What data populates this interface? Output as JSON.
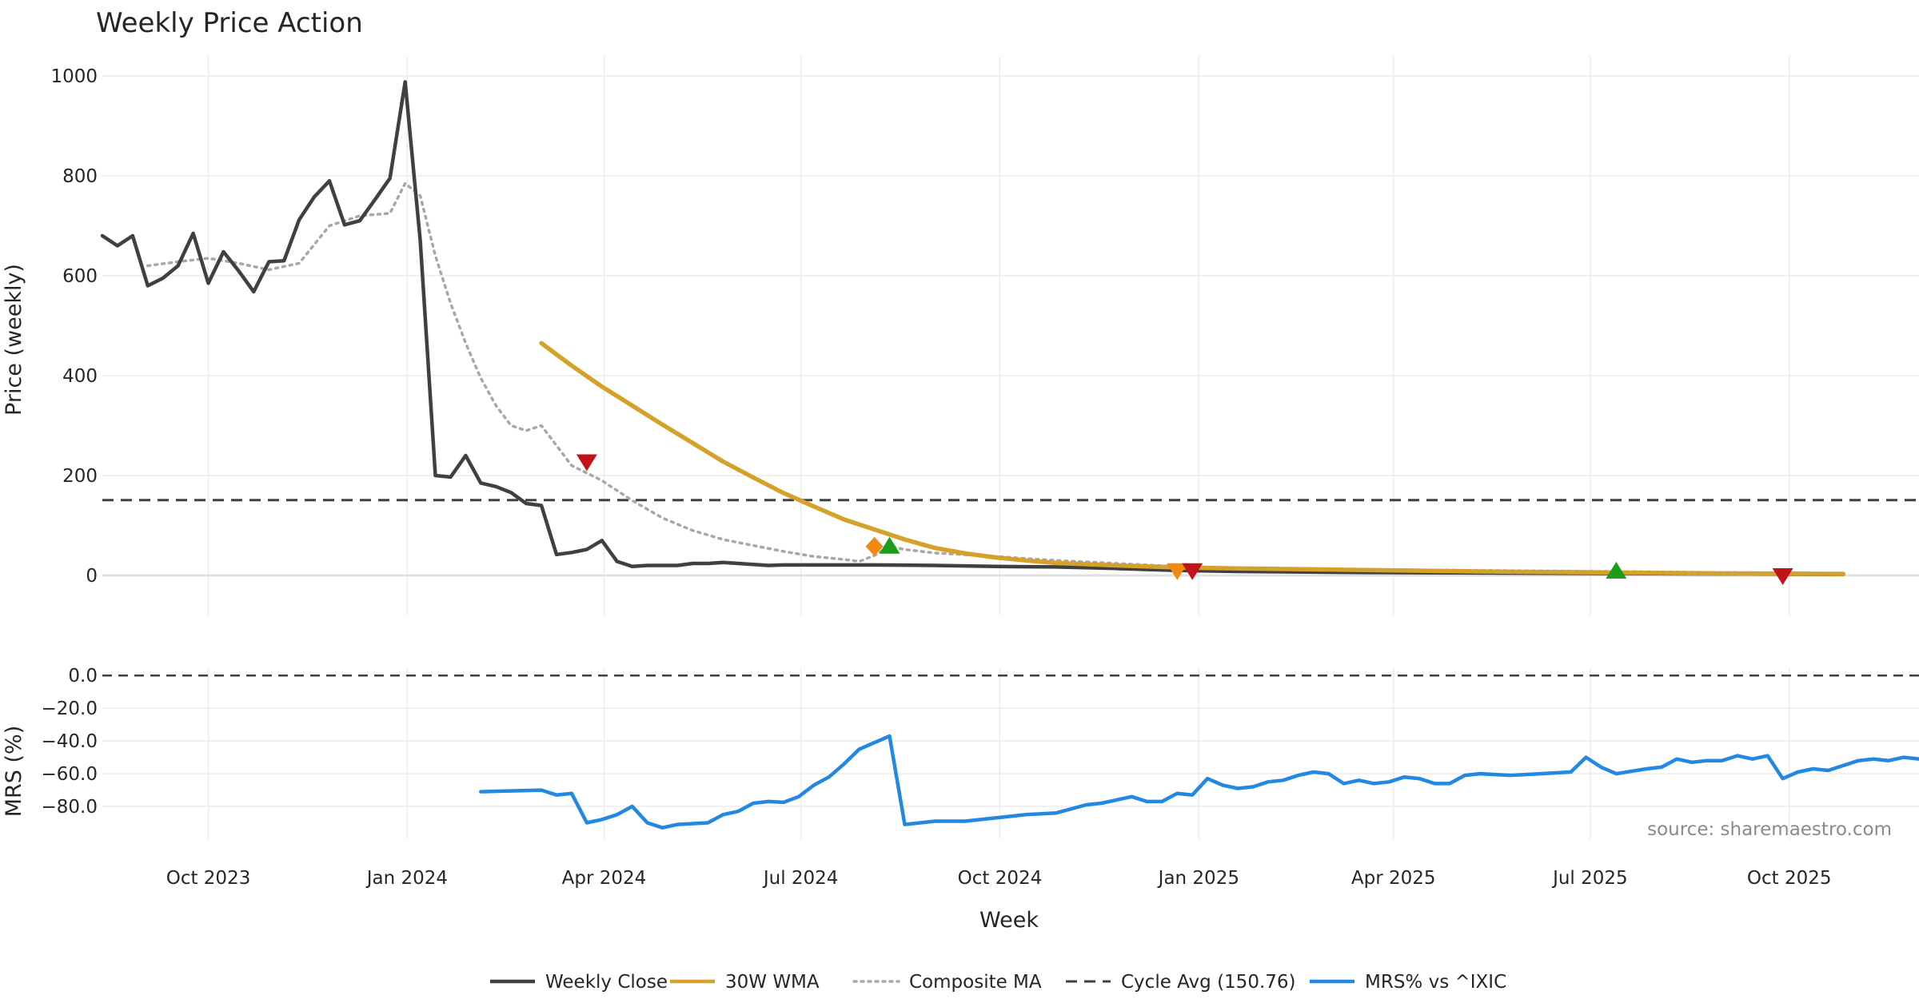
{
  "chart_data": {
    "type": "line",
    "title": "Weekly Price Action",
    "source_note": "source: sharemaestro.com",
    "xlabel": "Week",
    "x_ticks": [
      "Oct 2023",
      "Jan 2024",
      "Apr 2024",
      "Jul 2024",
      "Oct 2024",
      "Jan 2025",
      "Apr 2025",
      "Jul 2025",
      "Oct 2025"
    ],
    "price_panel": {
      "ylabel": "Price (weekly)",
      "ylim": [
        -80,
        1040
      ],
      "y_ticks": [
        0,
        200,
        400,
        600,
        800,
        1000
      ],
      "series": {
        "close": {
          "name": "Weekly Close",
          "color": "#404040",
          "points": [
            [
              "2023-08-13",
              680
            ],
            [
              "2023-08-20",
              660
            ],
            [
              "2023-08-27",
              680
            ],
            [
              "2023-09-03",
              580
            ],
            [
              "2023-09-10",
              595
            ],
            [
              "2023-09-17",
              620
            ],
            [
              "2023-09-24",
              685
            ],
            [
              "2023-10-01",
              585
            ],
            [
              "2023-10-08",
              648
            ],
            [
              "2023-10-15",
              610
            ],
            [
              "2023-10-22",
              568
            ],
            [
              "2023-10-29",
              628
            ],
            [
              "2023-11-05",
              630
            ],
            [
              "2023-11-12",
              712
            ],
            [
              "2023-11-19",
              758
            ],
            [
              "2023-11-26",
              790
            ],
            [
              "2023-12-03",
              702
            ],
            [
              "2023-12-10",
              710
            ],
            [
              "2023-12-17",
              752
            ],
            [
              "2023-12-24",
              795
            ],
            [
              "2023-12-31",
              988
            ],
            [
              "2024-01-07",
              670
            ],
            [
              "2024-01-14",
              200
            ],
            [
              "2024-01-21",
              197
            ],
            [
              "2024-01-28",
              240
            ],
            [
              "2024-02-04",
              185
            ],
            [
              "2024-02-11",
              178
            ],
            [
              "2024-02-18",
              166
            ],
            [
              "2024-02-25",
              144
            ],
            [
              "2024-03-03",
              140
            ],
            [
              "2024-03-10",
              42
            ],
            [
              "2024-03-17",
              46
            ],
            [
              "2024-03-24",
              52
            ],
            [
              "2024-03-31",
              70
            ],
            [
              "2024-04-07",
              28
            ],
            [
              "2024-04-14",
              18
            ],
            [
              "2024-04-21",
              20
            ],
            [
              "2024-04-28",
              20
            ],
            [
              "2024-05-05",
              20
            ],
            [
              "2024-05-12",
              24
            ],
            [
              "2024-05-19",
              24
            ],
            [
              "2024-05-26",
              26
            ],
            [
              "2024-06-02",
              24
            ],
            [
              "2024-06-09",
              22
            ],
            [
              "2024-06-16",
              20
            ],
            [
              "2024-06-23",
              21
            ],
            [
              "2024-07-07",
              21
            ],
            [
              "2024-08-04",
              21
            ],
            [
              "2024-09-01",
              20
            ],
            [
              "2024-09-29",
              18
            ],
            [
              "2024-10-27",
              17
            ],
            [
              "2024-11-24",
              14
            ],
            [
              "2024-12-22",
              10
            ],
            [
              "2025-01-19",
              8
            ],
            [
              "2025-03-16",
              6
            ],
            [
              "2025-05-11",
              5
            ],
            [
              "2025-07-06",
              4
            ],
            [
              "2025-08-31",
              3
            ],
            [
              "2025-10-26",
              2
            ]
          ]
        },
        "wma": {
          "name": "30W WMA",
          "color": "#d4a22b",
          "points": [
            [
              "2024-03-03",
              465
            ],
            [
              "2024-03-17",
              420
            ],
            [
              "2024-03-31",
              378
            ],
            [
              "2024-04-14",
              340
            ],
            [
              "2024-04-28",
              302
            ],
            [
              "2024-05-12",
              265
            ],
            [
              "2024-05-26",
              228
            ],
            [
              "2024-06-09",
              196
            ],
            [
              "2024-06-23",
              165
            ],
            [
              "2024-07-07",
              138
            ],
            [
              "2024-07-21",
              112
            ],
            [
              "2024-08-04",
              92
            ],
            [
              "2024-08-18",
              72
            ],
            [
              "2024-09-01",
              55
            ],
            [
              "2024-09-15",
              44
            ],
            [
              "2024-09-29",
              36
            ],
            [
              "2024-10-13",
              30
            ],
            [
              "2024-10-27",
              25
            ],
            [
              "2024-11-24",
              20
            ],
            [
              "2024-12-22",
              16
            ],
            [
              "2025-01-19",
              14
            ],
            [
              "2025-03-16",
              11
            ],
            [
              "2025-05-11",
              8
            ],
            [
              "2025-07-06",
              6
            ],
            [
              "2025-08-31",
              4
            ],
            [
              "2025-10-26",
              3
            ]
          ]
        },
        "composite": {
          "name": "Composite MA",
          "color": "#a8a8a8",
          "points": [
            [
              "2023-09-03",
              620
            ],
            [
              "2023-09-17",
              628
            ],
            [
              "2023-10-01",
              635
            ],
            [
              "2023-10-15",
              625
            ],
            [
              "2023-10-29",
              612
            ],
            [
              "2023-11-12",
              625
            ],
            [
              "2023-11-26",
              700
            ],
            [
              "2023-12-10",
              720
            ],
            [
              "2023-12-24",
              725
            ],
            [
              "2023-12-31",
              785
            ],
            [
              "2024-01-07",
              760
            ],
            [
              "2024-01-14",
              640
            ],
            [
              "2024-01-21",
              545
            ],
            [
              "2024-01-28",
              465
            ],
            [
              "2024-02-04",
              395
            ],
            [
              "2024-02-11",
              340
            ],
            [
              "2024-02-18",
              300
            ],
            [
              "2024-02-25",
              290
            ],
            [
              "2024-03-03",
              300
            ],
            [
              "2024-03-10",
              260
            ],
            [
              "2024-03-17",
              220
            ],
            [
              "2024-03-31",
              190
            ],
            [
              "2024-04-14",
              150
            ],
            [
              "2024-04-28",
              115
            ],
            [
              "2024-05-12",
              90
            ],
            [
              "2024-05-26",
              72
            ],
            [
              "2024-06-09",
              60
            ],
            [
              "2024-06-23",
              48
            ],
            [
              "2024-07-07",
              38
            ],
            [
              "2024-07-21",
              32
            ],
            [
              "2024-07-28",
              28
            ],
            [
              "2024-08-04",
              40
            ],
            [
              "2024-08-11",
              58
            ],
            [
              "2024-08-18",
              52
            ],
            [
              "2024-09-01",
              45
            ],
            [
              "2024-09-29",
              38
            ],
            [
              "2024-10-27",
              30
            ],
            [
              "2024-11-24",
              24
            ],
            [
              "2024-12-22",
              18
            ],
            [
              "2025-01-19",
              14
            ],
            [
              "2025-03-16",
              12
            ],
            [
              "2025-05-11",
              10
            ],
            [
              "2025-07-06",
              8
            ],
            [
              "2025-08-31",
              6
            ],
            [
              "2025-10-26",
              4
            ]
          ]
        },
        "cycle_avg": {
          "name": "Cycle Avg (150.76)",
          "value": 150.76,
          "color": "#404040"
        }
      },
      "markers": [
        {
          "date": "2024-03-24",
          "value": 228,
          "shape": "triangle-down",
          "color": "#c0141a"
        },
        {
          "date": "2024-08-04",
          "value": 58,
          "shape": "diamond",
          "color": "#f28a10"
        },
        {
          "date": "2024-08-11",
          "value": 58,
          "shape": "triangle-up",
          "color": "#1a9e1a"
        },
        {
          "date": "2024-12-22",
          "value": 10,
          "shape": "triangle-down",
          "color": "#f28a10"
        },
        {
          "date": "2024-12-29",
          "value": 10,
          "shape": "triangle-down",
          "color": "#c0141a"
        },
        {
          "date": "2025-07-13",
          "value": 8,
          "shape": "triangle-up",
          "color": "#1a9e1a"
        },
        {
          "date": "2025-09-28",
          "value": 0,
          "shape": "triangle-down",
          "color": "#c0141a"
        }
      ]
    },
    "mrs_panel": {
      "ylabel": "MRS (%)",
      "ylim": [
        -100,
        5
      ],
      "y_ticks": [
        "0.0",
        "−20.0",
        "−40.0",
        "−60.0",
        "−80.0"
      ],
      "y_tick_values": [
        0,
        -20,
        -40,
        -60,
        -80
      ],
      "zero_line": 0,
      "series": {
        "mrs": {
          "name": "MRS% vs ^IXIC",
          "color": "#2288e2",
          "points": [
            [
              "2024-02-04",
              -71
            ],
            [
              "2024-02-18",
              -70.5
            ],
            [
              "2024-03-03",
              -70
            ],
            [
              "2024-03-10",
              -73
            ],
            [
              "2024-03-17",
              -72
            ],
            [
              "2024-03-24",
              -90
            ],
            [
              "2024-03-31",
              -88
            ],
            [
              "2024-04-07",
              -85
            ],
            [
              "2024-04-14",
              -80
            ],
            [
              "2024-04-21",
              -90
            ],
            [
              "2024-04-28",
              -93
            ],
            [
              "2024-05-05",
              -91
            ],
            [
              "2024-05-19",
              -90
            ],
            [
              "2024-05-26",
              -85
            ],
            [
              "2024-06-02",
              -83
            ],
            [
              "2024-06-09",
              -78
            ],
            [
              "2024-06-16",
              -77
            ],
            [
              "2024-06-23",
              -77.5
            ],
            [
              "2024-06-30",
              -74
            ],
            [
              "2024-07-07",
              -67
            ],
            [
              "2024-07-14",
              -62
            ],
            [
              "2024-07-21",
              -54
            ],
            [
              "2024-07-28",
              -45
            ],
            [
              "2024-08-04",
              -41
            ],
            [
              "2024-08-11",
              -37
            ],
            [
              "2024-08-18",
              -91
            ],
            [
              "2024-09-01",
              -89
            ],
            [
              "2024-09-15",
              -89
            ],
            [
              "2024-09-29",
              -87
            ],
            [
              "2024-10-13",
              -85
            ],
            [
              "2024-10-27",
              -84
            ],
            [
              "2024-11-10",
              -79
            ],
            [
              "2024-11-17",
              -78
            ],
            [
              "2024-11-24",
              -76
            ],
            [
              "2024-12-01",
              -74
            ],
            [
              "2024-12-08",
              -77
            ],
            [
              "2024-12-15",
              -77
            ],
            [
              "2024-12-22",
              -72
            ],
            [
              "2024-12-29",
              -73
            ],
            [
              "2025-01-05",
              -63
            ],
            [
              "2025-01-12",
              -67
            ],
            [
              "2025-01-19",
              -69
            ],
            [
              "2025-01-26",
              -68
            ],
            [
              "2025-02-02",
              -65
            ],
            [
              "2025-02-09",
              -64
            ],
            [
              "2025-02-16",
              -61
            ],
            [
              "2025-02-23",
              -59
            ],
            [
              "2025-03-02",
              -60
            ],
            [
              "2025-03-09",
              -66
            ],
            [
              "2025-03-16",
              -64
            ],
            [
              "2025-03-23",
              -66
            ],
            [
              "2025-03-30",
              -65
            ],
            [
              "2025-04-06",
              -62
            ],
            [
              "2025-04-13",
              -63
            ],
            [
              "2025-04-20",
              -66
            ],
            [
              "2025-04-27",
              -66
            ],
            [
              "2025-05-04",
              -61
            ],
            [
              "2025-05-11",
              -60
            ],
            [
              "2025-05-25",
              -61
            ],
            [
              "2025-06-08",
              -60
            ],
            [
              "2025-06-22",
              -59
            ],
            [
              "2025-06-29",
              -50
            ],
            [
              "2025-07-06",
              -56
            ],
            [
              "2025-07-13",
              -60
            ],
            [
              "2025-07-27",
              -57
            ],
            [
              "2025-08-03",
              -56
            ],
            [
              "2025-08-10",
              -51
            ],
            [
              "2025-08-17",
              -53
            ],
            [
              "2025-08-24",
              -52
            ],
            [
              "2025-08-31",
              -52
            ],
            [
              "2025-09-07",
              -49
            ],
            [
              "2025-09-14",
              -51
            ],
            [
              "2025-09-21",
              -49
            ],
            [
              "2025-09-28",
              -63
            ],
            [
              "2025-10-05",
              -59
            ],
            [
              "2025-10-12",
              -57
            ],
            [
              "2025-10-19",
              -58
            ],
            [
              "2025-10-26",
              -55
            ],
            [
              "2025-11-02",
              -52
            ],
            [
              "2025-11-09",
              -51
            ],
            [
              "2025-11-16",
              -52
            ],
            [
              "2025-11-23",
              -50
            ],
            [
              "2025-11-30",
              -51
            ]
          ]
        }
      }
    },
    "legend": {
      "placement": "bottom-center",
      "entries": [
        {
          "label": "Weekly Close",
          "color": "#404040",
          "style": "solid"
        },
        {
          "label": "30W WMA",
          "color": "#d4a22b",
          "style": "solid"
        },
        {
          "label": "Composite MA",
          "color": "#a8a8a8",
          "style": "dotted"
        },
        {
          "label": "Cycle Avg (150.76)",
          "color": "#404040",
          "style": "dashed"
        },
        {
          "label": "MRS% vs ^IXIC",
          "color": "#2288e2",
          "style": "solid"
        }
      ]
    },
    "grid": true
  }
}
